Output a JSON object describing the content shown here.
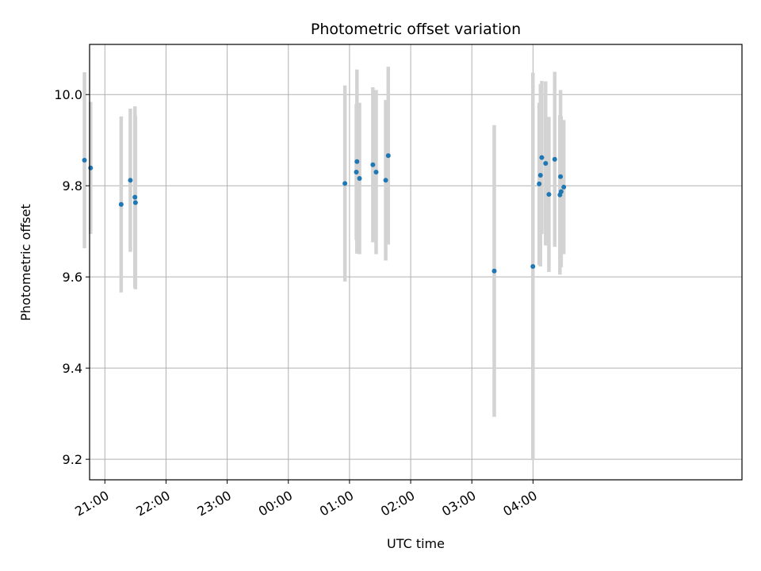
{
  "chart_data": {
    "type": "scatter",
    "title": "Photometric offset variation",
    "xlabel": "UTC time",
    "ylabel": "Photometric offset",
    "grid": true,
    "xlim": [
      -195,
      445
    ],
    "ylim": [
      9.155,
      10.11
    ],
    "xticks": [
      {
        "value": -180,
        "label": "21:00"
      },
      {
        "value": -120,
        "label": "22:00"
      },
      {
        "value": -60,
        "label": "23:00"
      },
      {
        "value": 0,
        "label": "00:00"
      },
      {
        "value": 60,
        "label": "01:00"
      },
      {
        "value": 120,
        "label": "02:00"
      },
      {
        "value": 180,
        "label": "03:00"
      },
      {
        "value": 240,
        "label": "04:00"
      }
    ],
    "yticks": [
      {
        "value": 9.2,
        "label": "9.2"
      },
      {
        "value": 9.4,
        "label": "9.4"
      },
      {
        "value": 9.6,
        "label": "9.6"
      },
      {
        "value": 9.8,
        "label": "9.8"
      },
      {
        "value": 10.0,
        "label": "10.0"
      }
    ],
    "point_color": "#1f77b4",
    "errorbar_color": "#d3d3d3",
    "points": [
      {
        "t": -200.0,
        "y": 9.856,
        "err": 0.193
      },
      {
        "t": -194.0,
        "y": 9.839,
        "err": 0.145
      },
      {
        "t": -164.0,
        "y": 9.759,
        "err": 0.193
      },
      {
        "t": -155.0,
        "y": 9.812,
        "err": 0.157
      },
      {
        "t": -150.5,
        "y": 9.775,
        "err": 0.199
      },
      {
        "t": -150.0,
        "y": 9.763,
        "err": 0.19
      },
      {
        "t": 55.5,
        "y": 9.805,
        "err": 0.215
      },
      {
        "t": 66.7,
        "y": 9.83,
        "err": 0.149
      },
      {
        "t": 67.3,
        "y": 9.853,
        "err": 0.202
      },
      {
        "t": 69.8,
        "y": 9.816,
        "err": 0.166
      },
      {
        "t": 82.9,
        "y": 9.846,
        "err": 0.17
      },
      {
        "t": 86.1,
        "y": 9.83,
        "err": 0.18
      },
      {
        "t": 95.5,
        "y": 9.812,
        "err": 0.176
      },
      {
        "t": 98.0,
        "y": 9.866,
        "err": 0.195
      },
      {
        "t": 202.0,
        "y": 9.613,
        "err": 0.32
      },
      {
        "t": 239.9,
        "y": 9.623,
        "err": 0.425
      },
      {
        "t": 246.1,
        "y": 9.804,
        "err": 0.178
      },
      {
        "t": 247.3,
        "y": 9.823,
        "err": 0.2
      },
      {
        "t": 248.6,
        "y": 9.862,
        "err": 0.168
      },
      {
        "t": 252.4,
        "y": 9.849,
        "err": 0.18
      },
      {
        "t": 255.6,
        "y": 9.781,
        "err": 0.17
      },
      {
        "t": 261.3,
        "y": 9.858,
        "err": 0.192
      },
      {
        "t": 266.4,
        "y": 9.78,
        "err": 0.175
      },
      {
        "t": 267.0,
        "y": 9.82,
        "err": 0.19
      },
      {
        "t": 267.6,
        "y": 9.787,
        "err": 0.166
      },
      {
        "t": 270.2,
        "y": 9.797,
        "err": 0.147
      }
    ]
  }
}
